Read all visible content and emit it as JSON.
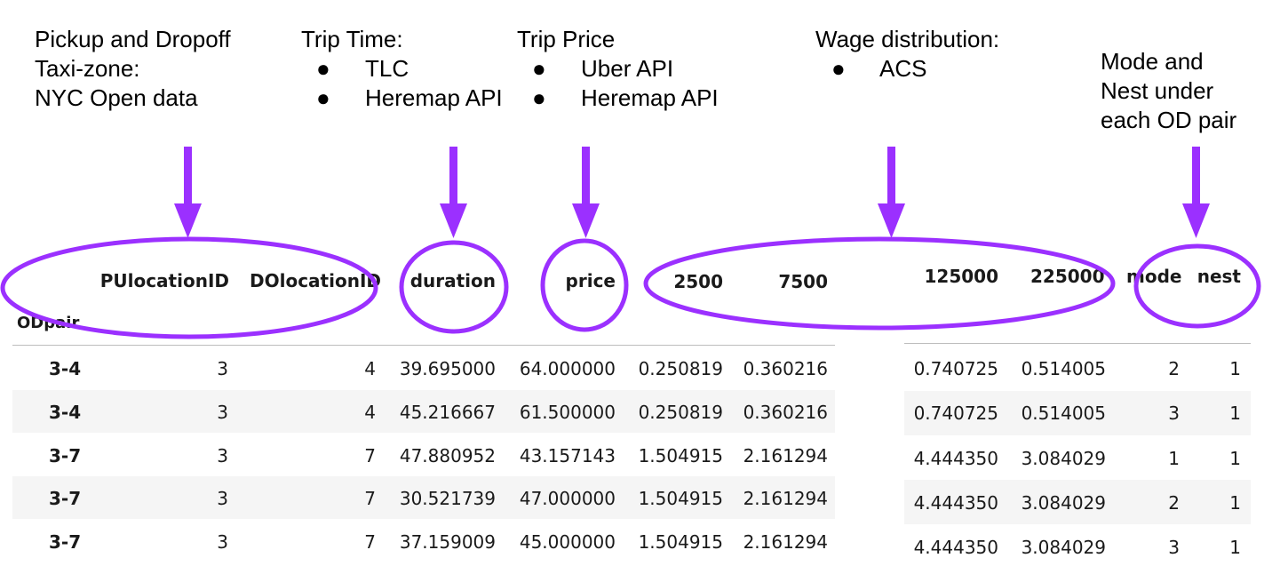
{
  "annotations": {
    "zones": {
      "lines": [
        "Pickup and Dropoff",
        "Taxi-zone:",
        "NYC Open data"
      ]
    },
    "trip_time": {
      "title": "Trip Time:",
      "bullets": [
        "TLC",
        "Heremap API"
      ]
    },
    "trip_price": {
      "title": "Trip Price",
      "bullets": [
        "Uber API",
        "Heremap API"
      ]
    },
    "wage": {
      "title": "Wage distribution:",
      "bullets": [
        "ACS"
      ]
    },
    "mode_nest": {
      "lines": [
        "Mode and",
        "Nest under",
        "each OD pair"
      ]
    },
    "bullet_char": "●"
  },
  "colors": {
    "accent": "#9b30ff",
    "stripe": "#f5f5f5",
    "rule": "#bdbdbd"
  },
  "table": {
    "index_name": "ODpair",
    "columns": [
      "PUlocationID",
      "DOlocationID",
      "duration",
      "price",
      "2500",
      "7500",
      "125000",
      "225000",
      "mode",
      "nest"
    ],
    "rows": [
      {
        "index": "3-4",
        "left": [
          "3",
          "4",
          "39.695000",
          "64.000000",
          "0.250819",
          "0.360216"
        ],
        "right": [
          "0.740725",
          "0.514005",
          "2",
          "1"
        ]
      },
      {
        "index": "3-4",
        "left": [
          "3",
          "4",
          "45.216667",
          "61.500000",
          "0.250819",
          "0.360216"
        ],
        "right": [
          "0.740725",
          "0.514005",
          "3",
          "1"
        ]
      },
      {
        "index": "3-7",
        "left": [
          "3",
          "7",
          "47.880952",
          "43.157143",
          "1.504915",
          "2.161294"
        ],
        "right": [
          "4.444350",
          "3.084029",
          "1",
          "1"
        ]
      },
      {
        "index": "3-7",
        "left": [
          "3",
          "7",
          "30.521739",
          "47.000000",
          "1.504915",
          "2.161294"
        ],
        "right": [
          "4.444350",
          "3.084029",
          "2",
          "1"
        ]
      },
      {
        "index": "3-7",
        "left": [
          "3",
          "7",
          "37.159009",
          "45.000000",
          "1.504915",
          "2.161294"
        ],
        "right": [
          "4.444350",
          "3.084029",
          "3",
          "1"
        ]
      }
    ]
  }
}
